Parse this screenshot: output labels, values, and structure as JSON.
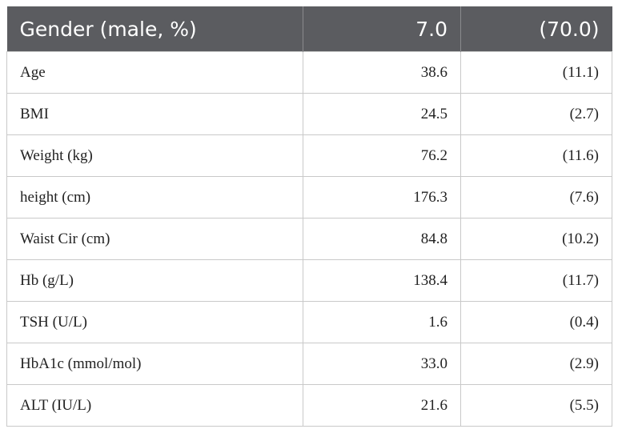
{
  "table": {
    "header": [
      "Gender (male, %)",
      "7.0",
      "(70.0)"
    ],
    "rows": [
      {
        "label": "Age",
        "value": "38.6",
        "sd": "(11.1)"
      },
      {
        "label": "BMI",
        "value": "24.5",
        "sd": "(2.7)"
      },
      {
        "label": "Weight (kg)",
        "value": "76.2",
        "sd": "(11.6)"
      },
      {
        "label": "height (cm)",
        "value": "176.3",
        "sd": "(7.6)"
      },
      {
        "label": "Waist Cir (cm)",
        "value": "84.8",
        "sd": "(10.2)"
      },
      {
        "label": "Hb (g/L)",
        "value": "138.4",
        "sd": "(11.7)"
      },
      {
        "label": "TSH (U/L)",
        "value": "1.6",
        "sd": "(0.4)"
      },
      {
        "label": "HbA1c (mmol/mol)",
        "value": "33.0",
        "sd": "(2.9)"
      },
      {
        "label": "ALT (IU/L)",
        "value": "21.6",
        "sd": "(5.5)"
      }
    ]
  }
}
